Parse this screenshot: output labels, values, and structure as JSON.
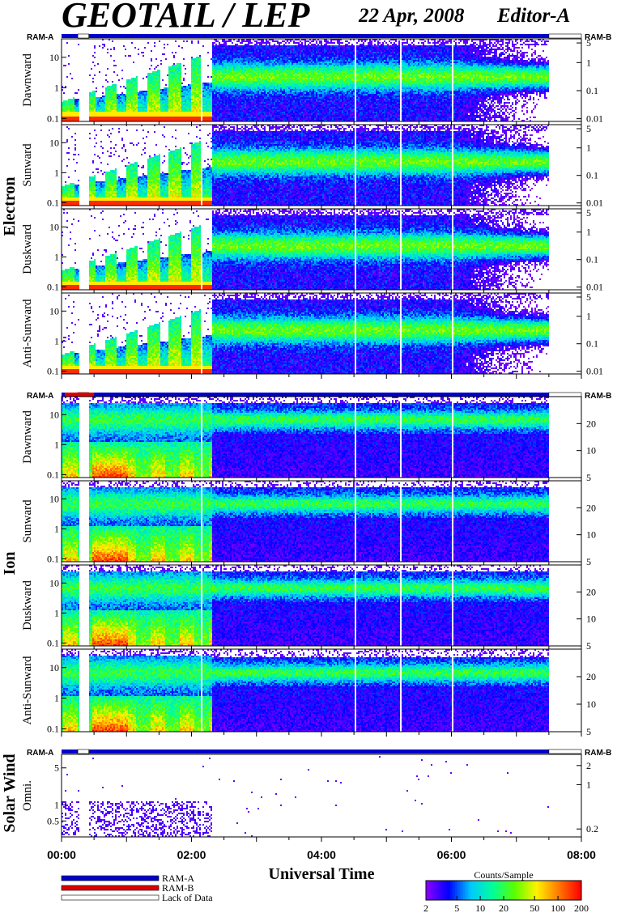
{
  "header": {
    "title": "GEOTAIL / LEP",
    "date": "22 Apr, 2008",
    "editor": "Editor-A"
  },
  "ram": {
    "left_label": "RAM-A",
    "right_label": "RAM-B"
  },
  "groups": [
    {
      "id": "electron",
      "label": "Electron"
    },
    {
      "id": "ion",
      "label": "Ion"
    },
    {
      "id": "solar",
      "label": "Solar Wind"
    }
  ],
  "legend": {
    "items": [
      {
        "label": "RAM-A",
        "color": "#0000cc"
      },
      {
        "label": "RAM-B",
        "color": "#dd0000"
      },
      {
        "label": "Lack of Data",
        "color": "#ffffff"
      }
    ],
    "colorbar_title": "Counts/Sample",
    "colorbar_ticks": [
      "2",
      "5",
      "10",
      "20",
      "50",
      "100",
      "200"
    ],
    "colorbar_values": [
      2,
      5,
      10,
      20,
      50,
      100,
      200
    ],
    "colorbar_colors": [
      "#8a00ff",
      "#0000ff",
      "#00c8ff",
      "#00ff9a",
      "#5aff00",
      "#fff200",
      "#ff7a00",
      "#ff0000"
    ]
  },
  "chart_data": {
    "type": "heatmap",
    "xlabel": "Universal Time",
    "x_ticks": [
      "00:00",
      "02:00",
      "04:00",
      "06:00",
      "08:00"
    ],
    "x_range_hours": [
      0,
      8
    ],
    "data_end_hour": 7.5,
    "data_gaps_hours": [
      [
        0.25,
        0.42
      ]
    ],
    "panels": [
      {
        "id": "e-dawn",
        "group": "electron",
        "label": "Dawnward",
        "yticks_left": [
          "10",
          "1",
          "0.1"
        ],
        "yticks_left_vals": [
          10,
          1,
          0.1
        ],
        "ylim": [
          0.08,
          40
        ],
        "yticks_right": [
          "5",
          "1",
          "0.1",
          "0.01"
        ],
        "yticks_right_vals": [
          5,
          1,
          0.1,
          0.01
        ],
        "yright_lim": [
          0.008,
          7
        ],
        "species": "electron"
      },
      {
        "id": "e-sun",
        "group": "electron",
        "label": "Sunward",
        "yticks_left": [
          "10",
          "1",
          "0.1"
        ],
        "yticks_left_vals": [
          10,
          1,
          0.1
        ],
        "ylim": [
          0.08,
          40
        ],
        "yticks_right": [
          "5",
          "1",
          "0.1",
          "0.01"
        ],
        "yticks_right_vals": [
          5,
          1,
          0.1,
          0.01
        ],
        "yright_lim": [
          0.008,
          7
        ],
        "species": "electron"
      },
      {
        "id": "e-dusk",
        "group": "electron",
        "label": "Duskward",
        "yticks_left": [
          "10",
          "1",
          "0.1"
        ],
        "yticks_left_vals": [
          10,
          1,
          0.1
        ],
        "ylim": [
          0.08,
          40
        ],
        "yticks_right": [
          "5",
          "1",
          "0.1",
          "0.01"
        ],
        "yticks_right_vals": [
          5,
          1,
          0.1,
          0.01
        ],
        "yright_lim": [
          0.008,
          7
        ],
        "species": "electron"
      },
      {
        "id": "e-anti",
        "group": "electron",
        "label": "Anti-Sunward",
        "yticks_left": [
          "10",
          "1",
          "0.1"
        ],
        "yticks_left_vals": [
          10,
          1,
          0.1
        ],
        "ylim": [
          0.08,
          40
        ],
        "yticks_right": [
          "5",
          "1",
          "0.1",
          "0.01"
        ],
        "yticks_right_vals": [
          5,
          1,
          0.1,
          0.01
        ],
        "yright_lim": [
          0.008,
          7
        ],
        "species": "electron"
      },
      {
        "id": "i-dawn",
        "group": "ion",
        "label": "Dawnward",
        "yticks_left": [
          "10",
          "1",
          "0.1"
        ],
        "yticks_left_vals": [
          10,
          1,
          0.1
        ],
        "ylim": [
          0.08,
          40
        ],
        "yticks_right": [
          "20",
          "10",
          "5"
        ],
        "yticks_right_vals": [
          20,
          10,
          5
        ],
        "yright_lim": [
          5,
          40
        ],
        "species": "ion"
      },
      {
        "id": "i-sun",
        "group": "ion",
        "label": "Sunward",
        "yticks_left": [
          "10",
          "1",
          "0.1"
        ],
        "yticks_left_vals": [
          10,
          1,
          0.1
        ],
        "ylim": [
          0.08,
          40
        ],
        "yticks_right": [
          "20",
          "10",
          "5"
        ],
        "yticks_right_vals": [
          20,
          10,
          5
        ],
        "yright_lim": [
          5,
          40
        ],
        "species": "ion"
      },
      {
        "id": "i-dusk",
        "group": "ion",
        "label": "Duskward",
        "yticks_left": [
          "10",
          "1",
          "0.1"
        ],
        "yticks_left_vals": [
          10,
          1,
          0.1
        ],
        "ylim": [
          0.08,
          40
        ],
        "yticks_right": [
          "20",
          "10",
          "5"
        ],
        "yticks_right_vals": [
          20,
          10,
          5
        ],
        "yright_lim": [
          5,
          40
        ],
        "species": "ion"
      },
      {
        "id": "i-anti",
        "group": "ion",
        "label": "Anti-Sunward",
        "yticks_left": [
          "10",
          "1",
          "0.1"
        ],
        "yticks_left_vals": [
          10,
          1,
          0.1
        ],
        "ylim": [
          0.08,
          40
        ],
        "yticks_right": [
          "20",
          "10",
          "5"
        ],
        "yticks_right_vals": [
          20,
          10,
          5
        ],
        "yright_lim": [
          5,
          40
        ],
        "species": "ion"
      },
      {
        "id": "sw-omni",
        "group": "solar",
        "label": "Omni.",
        "yticks_left": [
          "5",
          "1",
          "0.5"
        ],
        "yticks_left_vals": [
          5,
          1,
          0.5
        ],
        "ylim": [
          0.25,
          9
        ],
        "yticks_right": [
          "2",
          "1",
          "0.2"
        ],
        "yticks_right_vals": [
          2,
          1,
          0.2
        ],
        "yright_lim": [
          0.15,
          3
        ],
        "species": "solar"
      }
    ]
  }
}
